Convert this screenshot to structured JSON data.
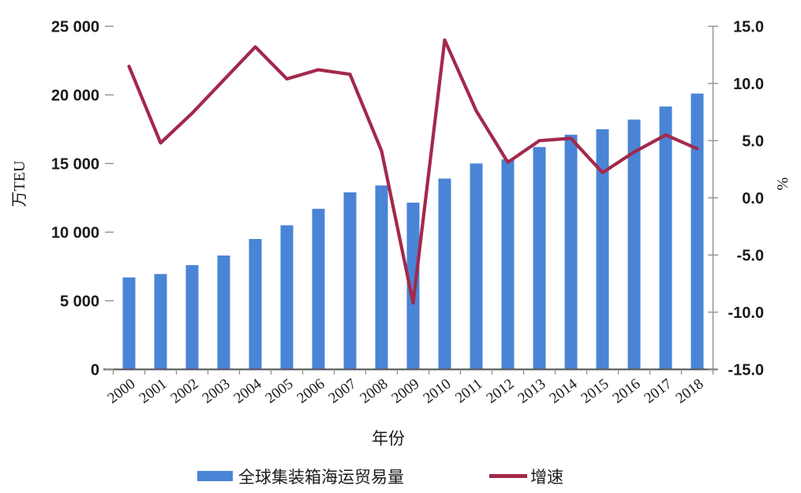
{
  "chart_data": {
    "type": "bar",
    "subtype": "bar-line-combo",
    "categories": [
      "2000",
      "2001",
      "2002",
      "2003",
      "2004",
      "2005",
      "2006",
      "2007",
      "2008",
      "2009",
      "2010",
      "2011",
      "2012",
      "2013",
      "2014",
      "2015",
      "2016",
      "2017",
      "2018"
    ],
    "series": [
      {
        "name": "全球集装箱海运贸易量",
        "type": "bar",
        "axis": "left",
        "unit": "万TEU",
        "color": "#4A84D6",
        "values": [
          6700,
          6950,
          7600,
          8300,
          9500,
          10500,
          11700,
          12900,
          13400,
          12150,
          13900,
          15000,
          15300,
          16200,
          17100,
          17500,
          18200,
          19150,
          20100
        ]
      },
      {
        "name": "增速",
        "type": "line",
        "axis": "right",
        "unit": "%",
        "color": "#A3294B",
        "values": [
          11.5,
          4.8,
          7.4,
          10.3,
          13.2,
          10.4,
          11.2,
          10.8,
          4.1,
          -9.2,
          13.8,
          7.6,
          3.1,
          5.0,
          5.2,
          2.2,
          4.0,
          5.5,
          4.3
        ]
      }
    ],
    "left_axis": {
      "title": "万TEU",
      "min": 0,
      "max": 25000,
      "step": 5000,
      "tick_values": [
        25000,
        20000,
        15000,
        10000,
        5000,
        0
      ],
      "tick_labels": [
        "25 000",
        "20 000",
        "15 000",
        "10 000",
        "5 000",
        "0"
      ]
    },
    "right_axis": {
      "title": "%",
      "min": -15,
      "max": 15,
      "step": 5,
      "tick_values": [
        15,
        10,
        5,
        0,
        -5,
        -10,
        -15
      ],
      "tick_labels": [
        "15.0",
        "10.0",
        "5.0",
        "0.0",
        "-5.0",
        "-10.0",
        "-15.0"
      ]
    },
    "x_axis": {
      "title": "年份"
    },
    "legend": {
      "position": "bottom",
      "items": [
        {
          "label": "全球集装箱海运贸易量",
          "swatch": "bar"
        },
        {
          "label": "增速",
          "swatch": "line"
        }
      ]
    },
    "grid": false,
    "title": ""
  },
  "colors": {
    "bar": "#4A84D6",
    "line": "#A3294B",
    "baseline": "#595959",
    "axis_gray": "#8C8C8C",
    "text": "#1a1a1a"
  }
}
